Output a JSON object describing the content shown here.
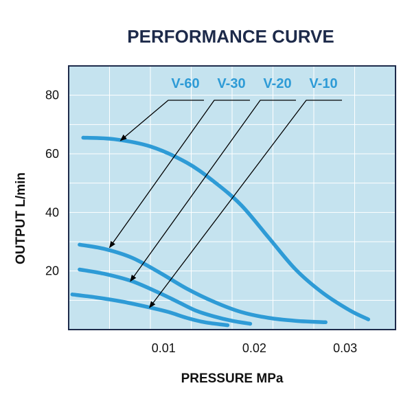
{
  "chart_data": {
    "type": "line",
    "title": "PERFORMANCE CURVE",
    "xlabel": "PRESSURE MPa",
    "ylabel": "OUTPUT L/min",
    "xlim": [
      0,
      0.036
    ],
    "ylim": [
      0,
      90
    ],
    "xticks": [
      0.01,
      0.02,
      0.03
    ],
    "xtick_labels": [
      "0.01",
      "0.02",
      "0.03"
    ],
    "yticks": [
      20,
      40,
      60,
      80
    ],
    "ytick_labels": [
      "20",
      "40",
      "60",
      "80"
    ],
    "grid": true,
    "legend": "top-right",
    "series": [
      {
        "name": "V-60",
        "x": [
          0.0016,
          0.005,
          0.009,
          0.013,
          0.016,
          0.019,
          0.022,
          0.025,
          0.028,
          0.031,
          0.033
        ],
        "y": [
          65.5,
          65,
          62.5,
          57,
          50.5,
          42.5,
          31.5,
          20.5,
          12.5,
          6.5,
          3.5
        ]
      },
      {
        "name": "V-30",
        "x": [
          0.0012,
          0.004,
          0.007,
          0.01,
          0.013,
          0.016,
          0.019,
          0.022,
          0.025,
          0.0283
        ],
        "y": [
          29,
          27.5,
          24.5,
          19.5,
          14,
          9.5,
          6,
          4,
          3,
          2.5
        ]
      },
      {
        "name": "V-20",
        "x": [
          0.0012,
          0.004,
          0.007,
          0.01,
          0.012,
          0.014,
          0.016,
          0.018,
          0.02
        ],
        "y": [
          20.5,
          19,
          16.5,
          12.5,
          9.5,
          6.5,
          4.5,
          3,
          2
        ]
      },
      {
        "name": "V-10",
        "x": [
          0.0004,
          0.003,
          0.006,
          0.009,
          0.011,
          0.013,
          0.015,
          0.0175
        ],
        "y": [
          12,
          11,
          9.5,
          7.5,
          6,
          4,
          2.5,
          1.5
        ]
      }
    ],
    "annotations": [
      {
        "series": "V-60",
        "target": [
          0.0057,
          64.5
        ]
      },
      {
        "series": "V-30",
        "target": [
          0.0045,
          28
        ]
      },
      {
        "series": "V-20",
        "target": [
          0.0068,
          16.5
        ]
      },
      {
        "series": "V-10",
        "target": [
          0.0089,
          7.5
        ]
      }
    ],
    "colors": {
      "curve": "#2e9bd6",
      "plot_background": "#c5e3ef",
      "grid": "#ffffff",
      "frame": "#1d2a4a",
      "title": "#1d2a4a",
      "series_label": "#2e9bd6",
      "arrow": "#000000"
    }
  }
}
